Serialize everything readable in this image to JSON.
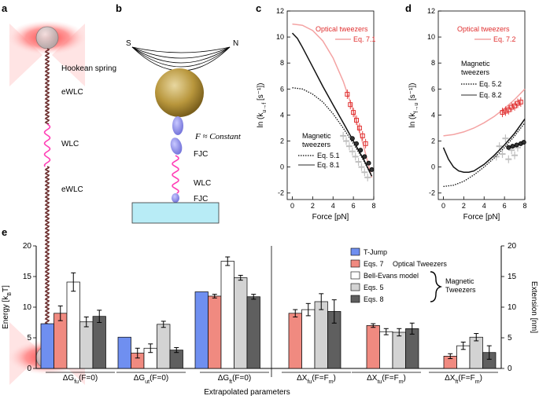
{
  "panels": {
    "a": {
      "letter": "a",
      "labels": [
        "Hookean spring",
        "eWLC",
        "WLC",
        "eWLC"
      ]
    },
    "b": {
      "letter": "b",
      "pole_s": "S",
      "pole_n": "N",
      "force_label": "F ≈ Constant",
      "labels": [
        "FJC",
        "WLC",
        "FJC"
      ]
    },
    "c": {
      "letter": "c",
      "ylabel": "ln (k",
      "ylabel_sub": "u→f",
      "ylabel_unit": " [s⁻¹])",
      "xlabel": "Force [pN]",
      "optical_title": "Optical tweezers",
      "optical_eq": "Eq. 7.1",
      "magnetic_title": "Magnetic",
      "magnetic_title2": "tweezers",
      "mag_eq1": "Eq. 5.1",
      "mag_eq2": "Eq. 8.1",
      "yticks": [
        "-2",
        "0",
        "2",
        "4",
        "6",
        "8",
        "10",
        "12"
      ],
      "xticks": [
        "0",
        "2",
        "4",
        "6",
        "8"
      ]
    },
    "d": {
      "letter": "d",
      "ylabel": "ln (k",
      "ylabel_sub": "f→u",
      "ylabel_unit": " [s⁻¹])",
      "xlabel": "Force [pN]",
      "optical_title": "Optical tweezers",
      "optical_eq": "Eq. 7.2",
      "magnetic_title": "Magnetic",
      "magnetic_title2": "tweezers",
      "mag_eq1": "Eq. 5.2",
      "mag_eq2": "Eq. 8.2",
      "yticks": [
        "-2",
        "0",
        "2",
        "4",
        "6",
        "8",
        "10",
        "12"
      ],
      "xticks": [
        "0",
        "2",
        "4",
        "6",
        "8"
      ]
    },
    "e": {
      "letter": "e",
      "ylabel_left": "Energy [k",
      "ylabel_left_sub": "B",
      "ylabel_left_end": "T]",
      "ylabel_right": "Extension [nm]",
      "xlabel": "Extrapolated parameters",
      "yticks": [
        "0",
        "5",
        "10",
        "15",
        "20"
      ],
      "legend": {
        "tjump": "T-Jump",
        "eq7": "Eqs. 7",
        "optical": "Optical Tweezers",
        "bell": "Bell-Evans model",
        "eq5": "Eqs. 5",
        "eq8": "Eqs. 8",
        "magnetic1": "Magnetic",
        "magnetic2": "Tweezers"
      },
      "groups": [
        {
          "label": "ΔG",
          "sub": "fu",
          "arg": "(F=0)"
        },
        {
          "label": "ΔG",
          "sub": "ut",
          "arg": "(F=0)"
        },
        {
          "label": "ΔG",
          "sub": "ft",
          "arg": "(F=0)"
        },
        {
          "label": "ΔX",
          "sub": "fu",
          "arg": "(F=F",
          "argsub": "m",
          "argend": ")"
        },
        {
          "label": "ΔX",
          "sub": "tu",
          "arg": "(F=F",
          "argsub": "m",
          "argend": ")"
        },
        {
          "label": "ΔX",
          "sub": "ft",
          "arg": "(F=F",
          "argsub": "m",
          "argend": ")"
        }
      ]
    }
  },
  "chart_data": [
    {
      "type": "line",
      "panel": "c",
      "xlabel": "Force [pN]",
      "ylabel": "ln (k u→f [s⁻¹])",
      "xlim": [
        -0.5,
        8
      ],
      "ylim": [
        -2.5,
        12
      ],
      "series": [
        {
          "name": "Eq. 7.1",
          "style": "pink-solid",
          "x": [
            0,
            1,
            2,
            3,
            4,
            5,
            6,
            7,
            7.8
          ],
          "y": [
            11.0,
            10.9,
            10.5,
            9.7,
            8.4,
            6.6,
            4.3,
            1.6,
            -0.8
          ]
        },
        {
          "name": "Eq. 8.1",
          "style": "black-solid",
          "x": [
            0,
            0.5,
            1,
            2,
            3,
            4,
            5,
            6,
            7,
            7.8
          ],
          "y": [
            10.3,
            9.9,
            9.2,
            7.7,
            6.2,
            4.8,
            3.4,
            2.0,
            0.6,
            -0.7
          ]
        },
        {
          "name": "Eq. 5.1",
          "style": "black-dotted",
          "x": [
            0,
            1,
            2,
            3,
            4,
            5,
            6,
            7,
            7.8
          ],
          "y": [
            6.1,
            6.0,
            5.6,
            5.0,
            4.1,
            3.0,
            1.8,
            0.5,
            -0.7
          ]
        },
        {
          "name": "Optical tweezers data",
          "style": "red-squares",
          "x": [
            5.4,
            5.7,
            6.0,
            6.3,
            6.6,
            6.9,
            7.2
          ],
          "y": [
            5.6,
            4.8,
            4.2,
            3.6,
            3.0,
            2.4,
            1.8
          ]
        },
        {
          "name": "Magnetic tweezers data",
          "style": "black-circles",
          "x": [
            5.9,
            6.3,
            6.7,
            7.1,
            7.5,
            7.8
          ],
          "y": [
            2.2,
            1.8,
            1.3,
            0.8,
            0.3,
            -0.2
          ]
        },
        {
          "name": "Magnetic tweezers raw",
          "style": "gray-bars",
          "x": [
            5.0,
            5.3,
            5.6,
            5.9,
            6.2,
            6.5,
            6.8,
            7.1,
            7.4
          ],
          "y": [
            2.4,
            2.0,
            1.6,
            1.2,
            0.8,
            0.4,
            0.0,
            -0.4,
            -0.8
          ]
        }
      ]
    },
    {
      "type": "line",
      "panel": "d",
      "xlabel": "Force [pN]",
      "ylabel": "ln (k f→u [s⁻¹])",
      "xlim": [
        -0.5,
        8
      ],
      "ylim": [
        -2.5,
        12
      ],
      "series": [
        {
          "name": "Eq. 7.2",
          "style": "pink-solid",
          "x": [
            0,
            1,
            2,
            3,
            4,
            5,
            6,
            7,
            8
          ],
          "y": [
            2.4,
            2.5,
            2.7,
            3.0,
            3.4,
            3.9,
            4.5,
            5.2,
            6.0
          ]
        },
        {
          "name": "Eq. 8.2",
          "style": "black-solid",
          "x": [
            0,
            0.5,
            1,
            1.5,
            2,
            2.5,
            3,
            4,
            5,
            6,
            7,
            8
          ],
          "y": [
            1.5,
            0.6,
            0.0,
            -0.3,
            -0.4,
            -0.4,
            -0.3,
            0.2,
            0.9,
            1.7,
            2.6,
            3.7
          ]
        },
        {
          "name": "Eq. 5.2",
          "style": "black-dotted",
          "x": [
            0,
            1,
            2,
            3,
            4,
            5,
            6,
            7,
            8
          ],
          "y": [
            -1.5,
            -1.4,
            -1.1,
            -0.6,
            0.0,
            0.7,
            1.5,
            2.4,
            3.4
          ]
        },
        {
          "name": "Optical tweezers data",
          "style": "red-squares",
          "x": [
            5.8,
            6.1,
            6.4,
            6.7,
            7.0,
            7.3,
            7.6
          ],
          "y": [
            4.2,
            4.3,
            4.4,
            4.6,
            4.7,
            4.9,
            5.0
          ]
        },
        {
          "name": "Magnetic tweezers data",
          "style": "black-circles",
          "x": [
            6.4,
            6.8,
            7.2,
            7.6,
            7.9
          ],
          "y": [
            1.5,
            1.6,
            1.7,
            1.8,
            1.9
          ]
        },
        {
          "name": "Magnetic tweezers raw",
          "style": "gray-bars",
          "x": [
            5.2,
            5.5,
            5.8,
            6.1,
            6.4,
            6.7,
            7.0,
            7.3
          ],
          "y": [
            0.8,
            1.6,
            1.0,
            2.2,
            0.6,
            1.3,
            0.9,
            1.5
          ]
        }
      ]
    },
    {
      "type": "bar",
      "panel": "e",
      "ylabel": "Energy [kBT]",
      "y2label": "Extension [nm]",
      "xlabel": "Extrapolated parameters",
      "ylim": [
        0,
        20
      ],
      "categories": [
        "ΔGfu(F=0)",
        "ΔGut(F=0)",
        "ΔGft(F=0)",
        "ΔXfu(F=Fm)",
        "ΔXtu(F=Fm)",
        "ΔXft(F=Fm)"
      ],
      "series": [
        {
          "name": "T-Jump",
          "color": "#6f8ff0",
          "values": [
            7.3,
            5.1,
            12.5,
            null,
            null,
            null
          ],
          "errors": [
            0,
            0,
            0,
            null,
            null,
            null
          ]
        },
        {
          "name": "Eqs. 7",
          "color": "#f08a80",
          "values": [
            9.0,
            2.5,
            11.8,
            9.0,
            7.0,
            2.0
          ],
          "errors": [
            1.2,
            0.8,
            0.3,
            0.6,
            0.3,
            0.4
          ]
        },
        {
          "name": "Bell-Evans model",
          "color": "#ffffff",
          "values": [
            14.1,
            3.3,
            17.5,
            9.6,
            6.0,
            3.7
          ],
          "errors": [
            1.5,
            0.7,
            0.7,
            1.0,
            0.5,
            0.6
          ]
        },
        {
          "name": "Eqs. 5",
          "color": "#d3d3d3",
          "values": [
            7.6,
            7.2,
            14.8,
            10.9,
            5.9,
            5.1
          ],
          "errors": [
            0.8,
            0.5,
            0.4,
            1.3,
            0.6,
            0.6
          ]
        },
        {
          "name": "Eqs. 8",
          "color": "#5f5f5f",
          "values": [
            8.5,
            3.0,
            11.7,
            9.3,
            6.5,
            2.6
          ],
          "errors": [
            1.0,
            0.4,
            0.4,
            1.9,
            0.9,
            1.1
          ]
        }
      ]
    }
  ]
}
